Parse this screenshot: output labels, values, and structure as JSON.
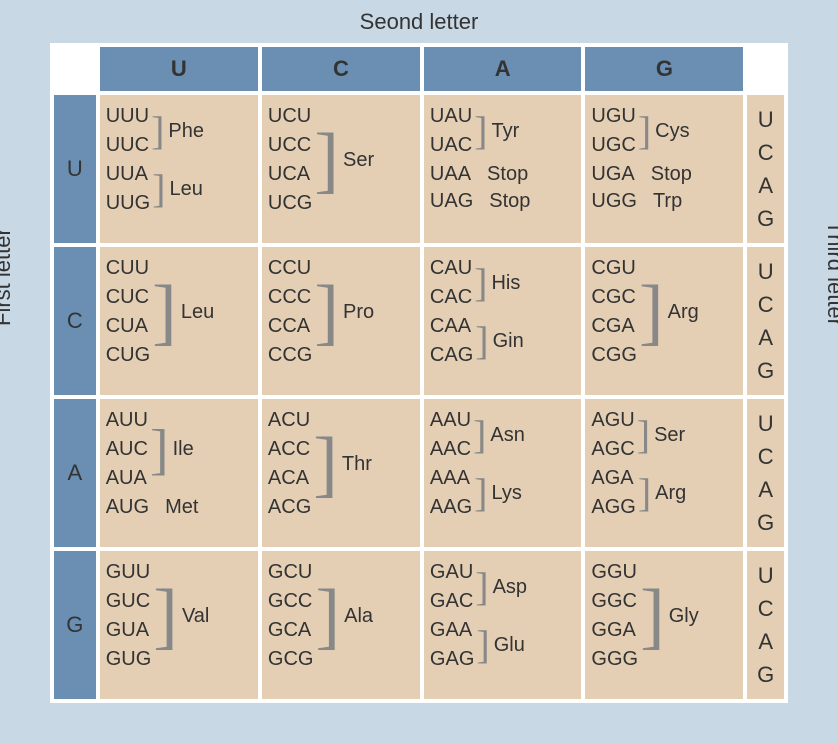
{
  "labels": {
    "top": "Seond letter",
    "left": "First letter",
    "right": "Third letter"
  },
  "cols": [
    "U",
    "C",
    "A",
    "G"
  ],
  "rows": [
    "U",
    "C",
    "A",
    "G"
  ],
  "third": [
    "U",
    "C",
    "A",
    "G"
  ],
  "colors": {
    "header_bg": "#6b8fb3",
    "cell_bg": "#e4cfb5",
    "page_bg": "#c8d8e4",
    "text": "#333333",
    "bracket": "#888888",
    "table_bg": "#ffffff"
  },
  "font": {
    "label_size": 22,
    "codon_size": 20
  },
  "cells": {
    "U": {
      "U": [
        {
          "codons": [
            "UUU",
            "UUC"
          ],
          "aa": "Phe",
          "br": true
        },
        {
          "codons": [
            "UUA",
            "UUG"
          ],
          "aa": "Leu",
          "br": true
        }
      ],
      "C": [
        {
          "codons": [
            "UCU",
            "UCC",
            "UCA",
            "UCG"
          ],
          "aa": "Ser",
          "br": true
        }
      ],
      "A": [
        {
          "codons": [
            "UAU",
            "UAC"
          ],
          "aa": "Tyr",
          "br": true
        },
        {
          "codons": [
            "UAA"
          ],
          "aa": "Stop",
          "br": false
        },
        {
          "codons": [
            "UAG"
          ],
          "aa": "Stop",
          "br": false
        }
      ],
      "G": [
        {
          "codons": [
            "UGU",
            "UGC"
          ],
          "aa": "Cys",
          "br": true
        },
        {
          "codons": [
            "UGA"
          ],
          "aa": "Stop",
          "br": false
        },
        {
          "codons": [
            "UGG"
          ],
          "aa": "Trp",
          "br": false
        }
      ]
    },
    "C": {
      "U": [
        {
          "codons": [
            "CUU",
            "CUC",
            "CUA",
            "CUG"
          ],
          "aa": "Leu",
          "br": true
        }
      ],
      "C": [
        {
          "codons": [
            "CCU",
            "CCC",
            "CCA",
            "CCG"
          ],
          "aa": "Pro",
          "br": true
        }
      ],
      "A": [
        {
          "codons": [
            "CAU",
            "CAC"
          ],
          "aa": "His",
          "br": true
        },
        {
          "codons": [
            "CAA",
            "CAG"
          ],
          "aa": "Gin",
          "br": true
        }
      ],
      "G": [
        {
          "codons": [
            "CGU",
            "CGC",
            "CGA",
            "CGG"
          ],
          "aa": "Arg",
          "br": true
        }
      ]
    },
    "A": {
      "U": [
        {
          "codons": [
            "AUU",
            "AUC",
            "AUA"
          ],
          "aa": "Ile",
          "br": true
        },
        {
          "codons": [
            "AUG"
          ],
          "aa": "Met",
          "br": false
        }
      ],
      "C": [
        {
          "codons": [
            "ACU",
            "ACC",
            "ACA",
            "ACG"
          ],
          "aa": "Thr",
          "br": true
        }
      ],
      "A": [
        {
          "codons": [
            "AAU",
            "AAC"
          ],
          "aa": "Asn",
          "br": true
        },
        {
          "codons": [
            "AAA",
            "AAG"
          ],
          "aa": "Lys",
          "br": true
        }
      ],
      "G": [
        {
          "codons": [
            "AGU",
            "AGC"
          ],
          "aa": "Ser",
          "br": true
        },
        {
          "codons": [
            "AGA",
            "AGG"
          ],
          "aa": "Arg",
          "br": true
        }
      ]
    },
    "G": {
      "U": [
        {
          "codons": [
            "GUU",
            "GUC",
            "GUA",
            "GUG"
          ],
          "aa": "Val",
          "br": true
        }
      ],
      "C": [
        {
          "codons": [
            "GCU",
            "GCC",
            "GCA",
            "GCG"
          ],
          "aa": "Ala",
          "br": true
        }
      ],
      "A": [
        {
          "codons": [
            "GAU",
            "GAC"
          ],
          "aa": "Asp",
          "br": true
        },
        {
          "codons": [
            "GAA",
            "GAG"
          ],
          "aa": "Glu",
          "br": true
        }
      ],
      "G": [
        {
          "codons": [
            "GGU",
            "GGC",
            "GGA",
            "GGG"
          ],
          "aa": "Gly",
          "br": true
        }
      ]
    }
  }
}
